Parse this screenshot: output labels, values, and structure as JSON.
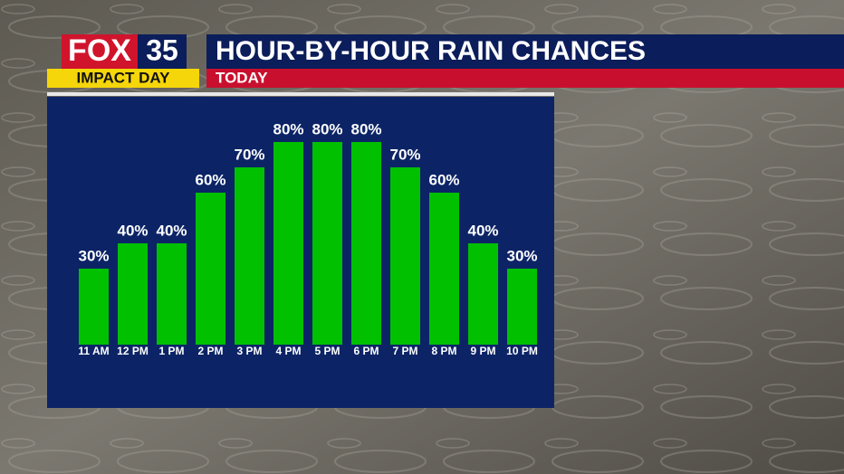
{
  "logo": {
    "brand": "FOX",
    "channel": "35",
    "tag": "IMPACT DAY"
  },
  "chart_data": {
    "type": "bar",
    "title": "HOUR-BY-HOUR RAIN CHANCES",
    "subtitle": "TODAY",
    "categories": [
      "11 AM",
      "12 PM",
      "1 PM",
      "2 PM",
      "3 PM",
      "4 PM",
      "5 PM",
      "6 PM",
      "7 PM",
      "8 PM",
      "9 PM",
      "10 PM"
    ],
    "values": [
      30,
      40,
      40,
      60,
      70,
      80,
      80,
      80,
      70,
      60,
      40,
      30
    ],
    "value_labels": [
      "30%",
      "40%",
      "40%",
      "60%",
      "70%",
      "80%",
      "80%",
      "80%",
      "70%",
      "60%",
      "40%",
      "30%"
    ],
    "color": "#00c000"
  }
}
